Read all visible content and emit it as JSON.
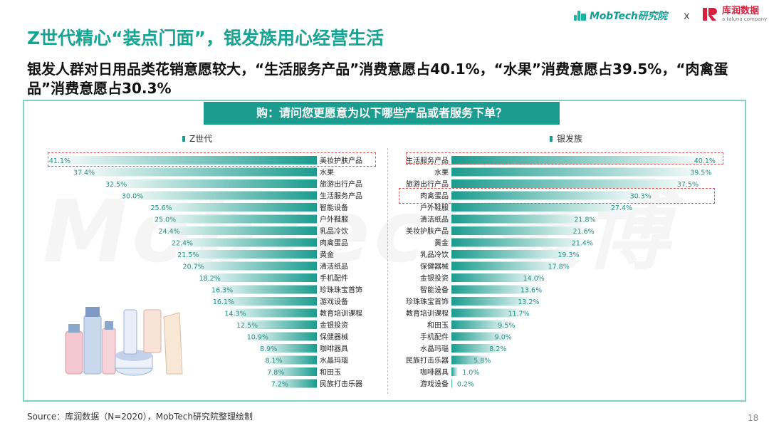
{
  "header": {
    "brand_mobtech": "MobTech研究院",
    "separator": "x",
    "brand_kurun": "库润数据",
    "brand_kurun_sub": "a taluna company"
  },
  "title": "Z世代精心“装点门面”，银发族用心经营生活",
  "subtitle": "银发人群对日用品类花销意愿较大，“生活服务产品”消费意愿占40.1%，“水果”消费意愿占39.5%，“肉禽蛋品”消费意愿占30.3%",
  "question": "购：请问您更愿意为以下哪些产品或者服务下单？",
  "watermark": "MobTech袤博",
  "source": "Source：库润数据（N=2020），MobTech研究院整理绘制",
  "page_number": "18",
  "colors": {
    "accent": "#1b9c8e",
    "highlight": "#d9534f",
    "bar_fade": "#ffffff"
  },
  "chart_data": [
    {
      "type": "bar",
      "orientation": "horizontal-left",
      "series_name": "Z世代",
      "unit": "%",
      "highlighted": [
        "美妆护肤产品"
      ],
      "categories": [
        "美妆护肤产品",
        "水果",
        "旅游出行产品",
        "生活服务产品",
        "智能设备",
        "户外鞋服",
        "乳品冷饮",
        "肉禽蛋品",
        "黄金",
        "清洁纸品",
        "手机配件",
        "珍珠珠宝首饰",
        "游戏设备",
        "教育培训课程",
        "金银投资",
        "保健器械",
        "咖啡器具",
        "水晶玛瑙",
        "和田玉",
        "民族打击乐器"
      ],
      "values": [
        41.1,
        37.4,
        32.5,
        30.0,
        25.6,
        25.0,
        24.4,
        22.4,
        21.5,
        20.7,
        18.2,
        16.3,
        16.1,
        14.3,
        12.5,
        10.9,
        8.9,
        8.1,
        7.8,
        7.2
      ],
      "labels": [
        "41.1%",
        "37.4%",
        "32.5%",
        "30.0%",
        "25.6%",
        "25.0%",
        "24.4%",
        "22.4%",
        "21.5%",
        "20.7%",
        "18.2%",
        "16.3%",
        "16.1%",
        "14.3%",
        "12.5%",
        "10.9%",
        "8.9%",
        "8.1%",
        "7.8%",
        "7.2%"
      ]
    },
    {
      "type": "bar",
      "orientation": "horizontal-right",
      "series_name": "银发族",
      "unit": "%",
      "highlighted": [
        "生活服务产品",
        "肉禽蛋品"
      ],
      "categories": [
        "生活服务产品",
        "水果",
        "旅游出行产品",
        "肉禽蛋品",
        "户外鞋服",
        "清洁纸品",
        "美妆护肤产品",
        "黄金",
        "乳品冷饮",
        "保健器械",
        "金银投资",
        "智能设备",
        "珍珠珠宝首饰",
        "教育培训课程",
        "和田玉",
        "手机配件",
        "水晶玛瑙",
        "民族打击乐器",
        "咖啡器具",
        "游戏设备"
      ],
      "values": [
        40.1,
        39.5,
        37.5,
        30.3,
        27.4,
        21.8,
        21.6,
        21.4,
        19.3,
        17.8,
        14.0,
        13.6,
        13.2,
        11.7,
        9.5,
        9.0,
        8.2,
        5.8,
        1.0,
        0.2
      ],
      "labels": [
        "40.1%",
        "39.5%",
        "37.5%",
        "30.3%",
        "27.4%",
        "21.8%",
        "21.6%",
        "21.4%",
        "19.3%",
        "17.8%",
        "14.0%",
        "13.6%",
        "13.2%",
        "11.7%",
        "9.5%",
        "9.0%",
        "8.2%",
        "5.8%",
        "1.0%",
        "0.2%"
      ]
    }
  ]
}
